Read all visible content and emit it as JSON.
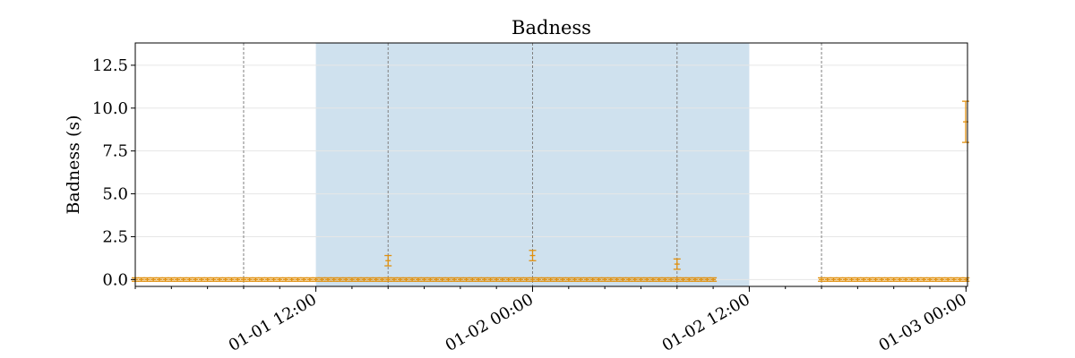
{
  "chart_data": {
    "type": "scatter",
    "title": "Badness",
    "xlabel": "",
    "ylabel": "Badness (s)",
    "x_axis_type": "datetime",
    "x_range": [
      "2023-01-01T02:00",
      "2023-01-03T00:05"
    ],
    "ylim": [
      -0.4,
      13.8
    ],
    "y_ticks": [
      0.0,
      2.5,
      5.0,
      7.5,
      10.0,
      12.5
    ],
    "y_tick_labels": [
      "0.0",
      "2.5",
      "5.0",
      "7.5",
      "10.0",
      "12.5"
    ],
    "x_ticks": [
      "2023-01-01T12:00",
      "2023-01-02T00:00",
      "2023-01-02T12:00",
      "2023-01-03T00:00"
    ],
    "x_tick_labels": [
      "01-01 12:00",
      "01-02 00:00",
      "01-02 12:00",
      "01-03 00:00"
    ],
    "grid": "horizontal",
    "legend": "none",
    "colors": {
      "series": "#e0900f",
      "shade": "#cfe1ee",
      "grid": "#e6e6e6",
      "vline": "#808080"
    },
    "shaded_region": [
      "2023-01-01T12:00",
      "2023-01-02T12:00"
    ],
    "vertical_lines": [
      "2023-01-01T08:00",
      "2023-01-01T16:00",
      "2023-01-02T00:00",
      "2023-01-02T08:00",
      "2023-01-02T16:00"
    ],
    "segments": [
      {
        "start": "2023-01-01T02:00",
        "end": "2023-01-02T10:00",
        "step_minutes": 20,
        "value": 0.0,
        "err": 0.1
      },
      {
        "start": "2023-01-02T16:00",
        "end": "2023-01-03T00:00",
        "step_minutes": 20,
        "value": 0.0,
        "err": 0.1
      }
    ],
    "highlight_points": [
      {
        "x": "2023-01-01T16:00",
        "y": 1.1,
        "yerr": 0.3
      },
      {
        "x": "2023-01-02T00:00",
        "y": 1.4,
        "yerr": 0.3
      },
      {
        "x": "2023-01-02T08:00",
        "y": 0.9,
        "yerr": 0.3
      },
      {
        "x": "2023-01-03T00:00",
        "y": 9.2,
        "yerr": 1.2
      }
    ]
  }
}
